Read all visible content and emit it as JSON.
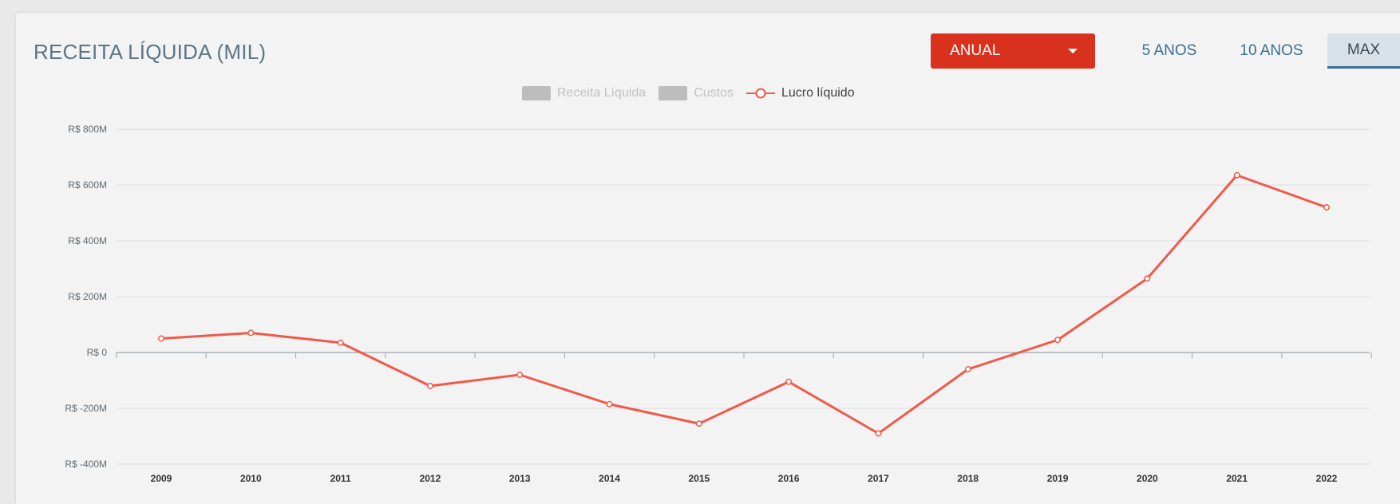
{
  "header": {
    "title": "RECEITA LÍQUIDA (MIL)",
    "period_select": "ANUAL",
    "range_tabs": [
      "5 ANOS",
      "10 ANOS",
      "MAX"
    ],
    "active_range": "MAX"
  },
  "colors": {
    "accent": "#d8321e",
    "line": "#ef5a4a",
    "link": "#3a6f93",
    "legend_disabled": "#bdbdbd"
  },
  "chart_data": {
    "type": "line",
    "title": "RECEITA LÍQUIDA (MIL)",
    "categories": [
      "2009",
      "2010",
      "2011",
      "2012",
      "2013",
      "2014",
      "2015",
      "2016",
      "2017",
      "2018",
      "2019",
      "2020",
      "2021",
      "2022"
    ],
    "y_ticks": [
      "R$ 800M",
      "R$ 600M",
      "R$ 400M",
      "R$ 200M",
      "R$ 0",
      "R$ -200M",
      "R$ -400M"
    ],
    "y_tick_values": [
      800,
      600,
      400,
      200,
      0,
      -200,
      -400
    ],
    "ylim": [
      -400,
      800
    ],
    "legend": [
      {
        "name": "Receita Líquida",
        "visible": false
      },
      {
        "name": "Custos",
        "visible": false
      },
      {
        "name": "Lucro líquido",
        "visible": true
      }
    ],
    "legend_position": "top-center",
    "grid": true,
    "series": [
      {
        "name": "Lucro líquido",
        "values": [
          50,
          70,
          35,
          -120,
          -80,
          -185,
          -255,
          -105,
          -290,
          -60,
          45,
          265,
          635,
          520
        ]
      }
    ]
  }
}
